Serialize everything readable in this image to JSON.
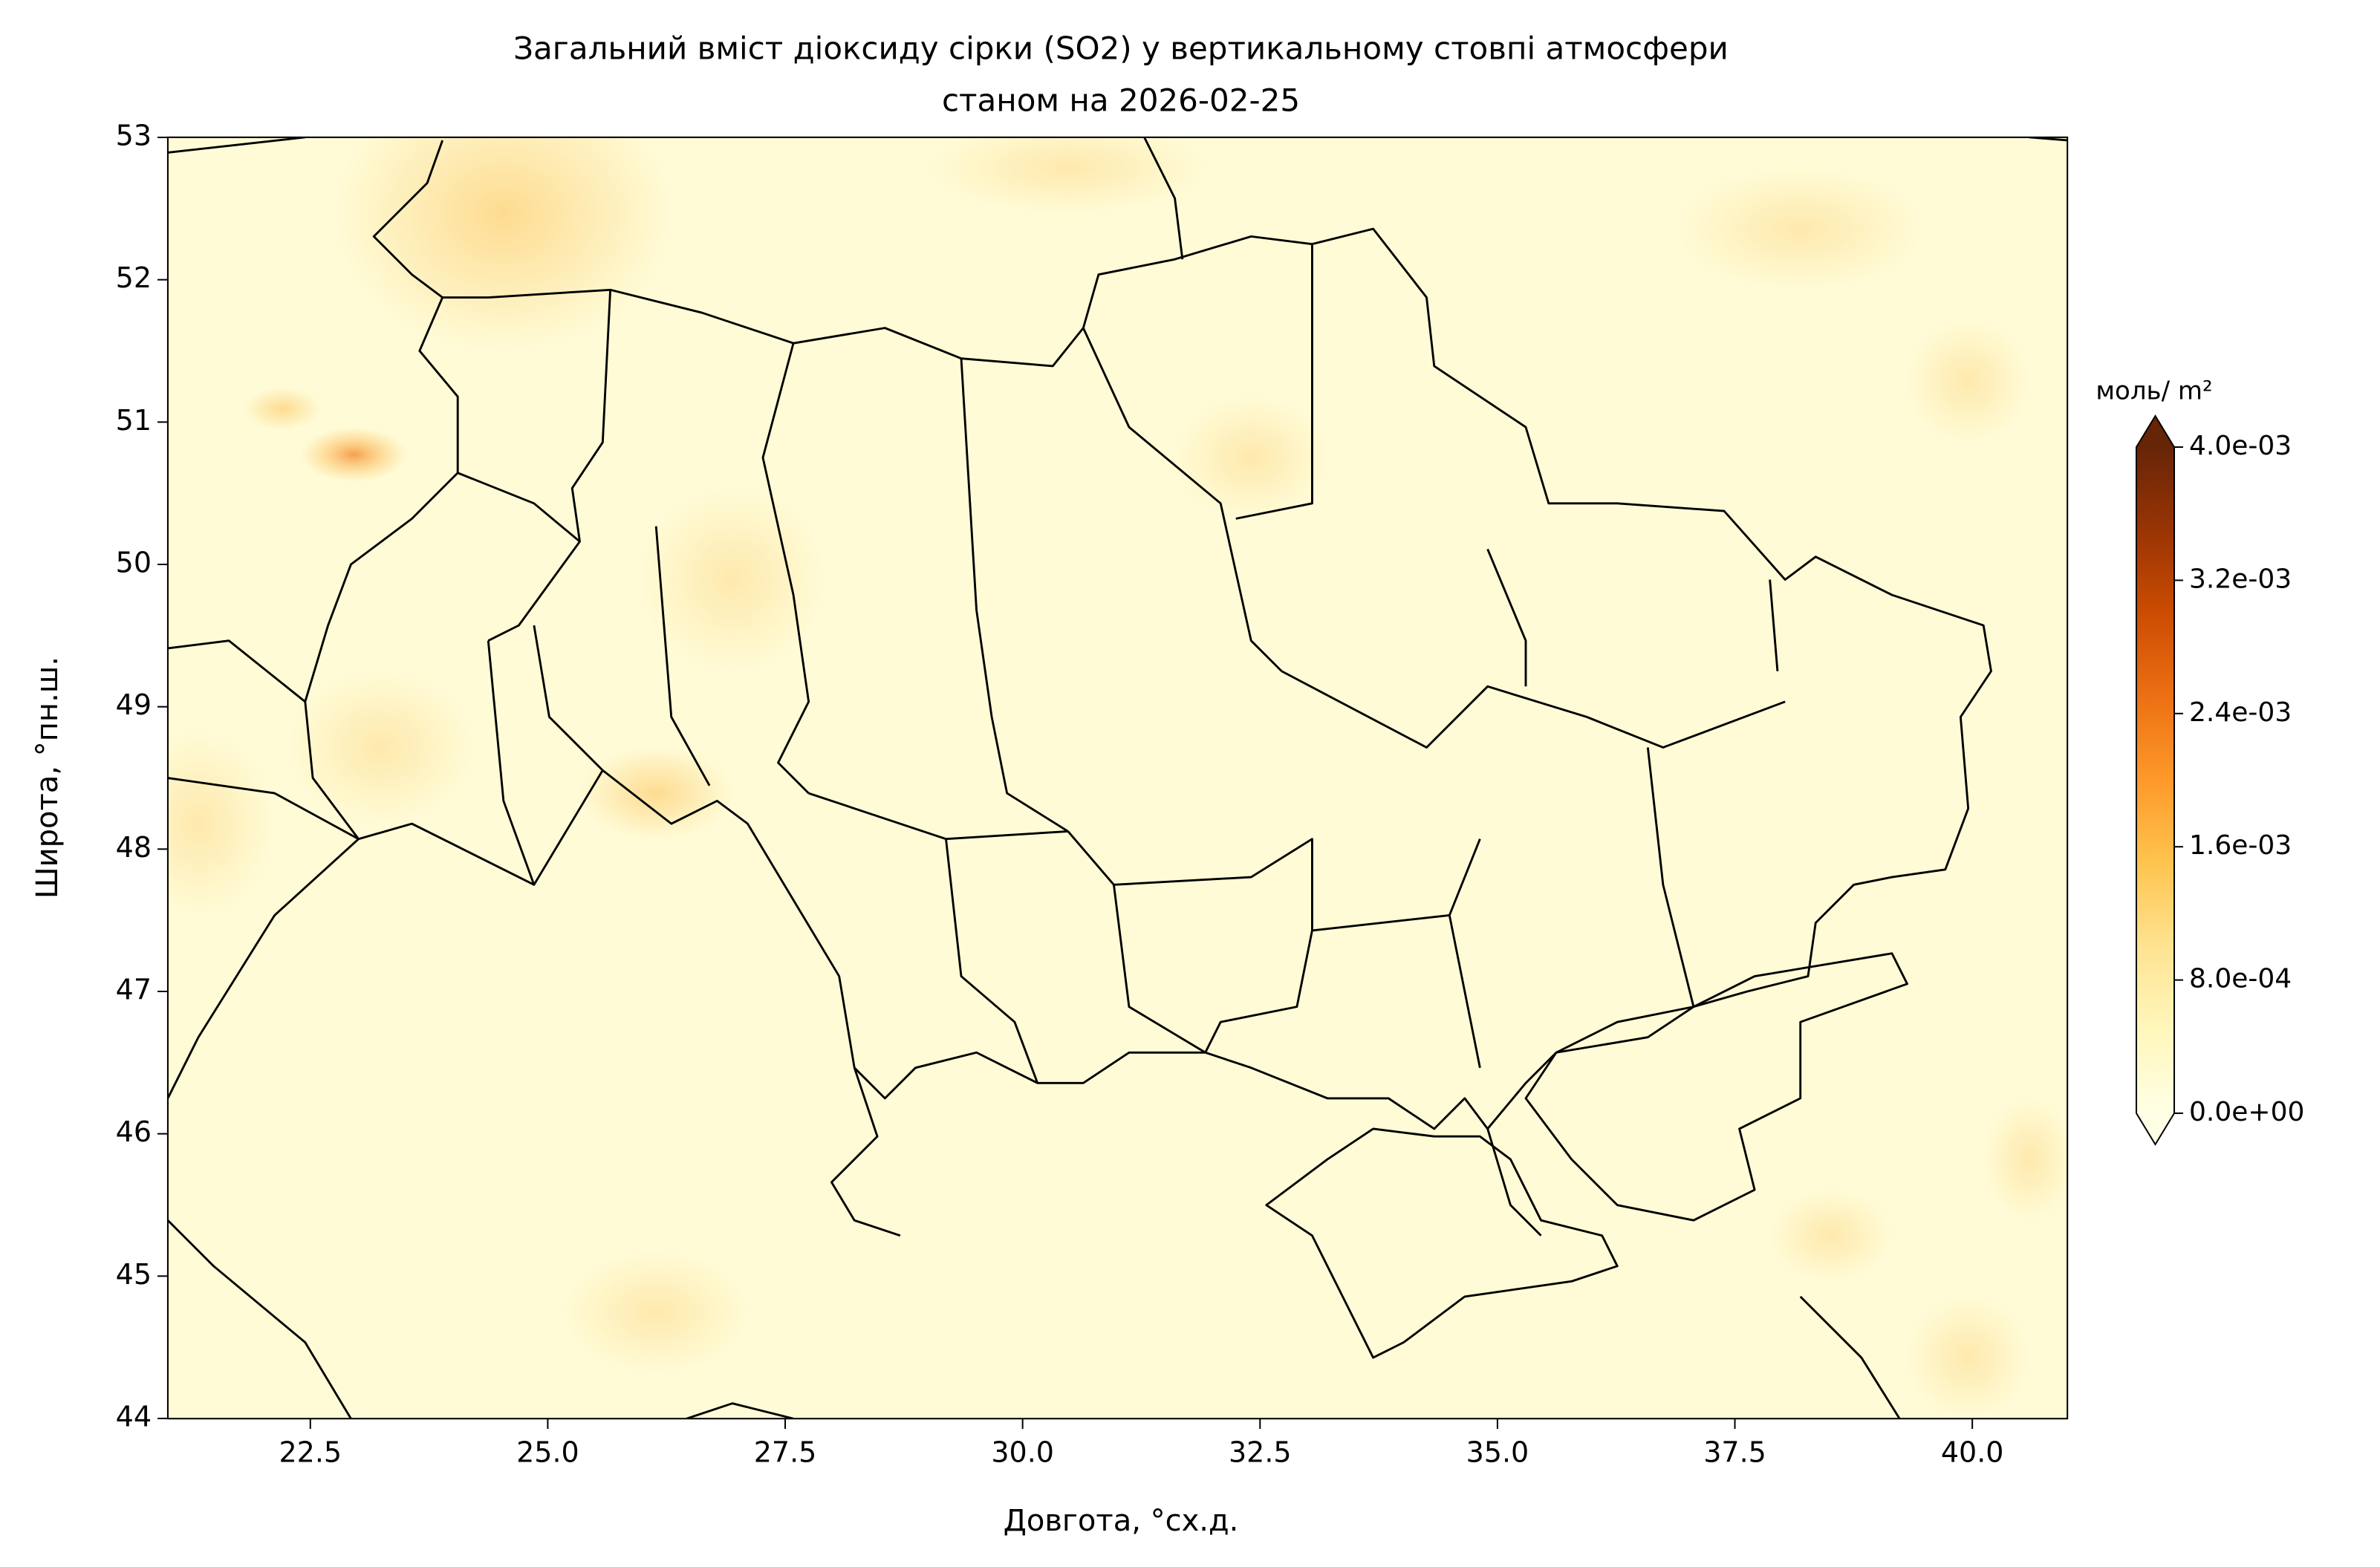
{
  "chart_data": {
    "type": "map",
    "title": [
      "Загальний вміст діоксиду сірки (SO2) у вертикальному стовпі атмосфери",
      "станом на 2026-02-25"
    ],
    "x_label": "Довгота, °сх.д.",
    "y_label": "Широта, °пн.ш.",
    "xlim": [
      21,
      41
    ],
    "ylim": [
      44,
      53
    ],
    "xticks": [
      22.5,
      {
        "value": 25,
        "label": "25.0"
      },
      27.5,
      {
        "value": 30,
        "label": "30.0"
      },
      32.5,
      {
        "value": 35,
        "label": "35.0"
      },
      37.5,
      {
        "value": 40,
        "label": "40.0"
      }
    ],
    "yticks": [
      44,
      45,
      46,
      47,
      48,
      49,
      50,
      51,
      52,
      53
    ],
    "colorbar": {
      "label": "моль/ m²",
      "lim": [
        0,
        0.004
      ],
      "ticks": [
        {
          "value": 0,
          "label": "0.0e+00"
        },
        {
          "value": 0.0008,
          "label": "8.0e-04"
        },
        {
          "value": 0.0016,
          "label": "1.6e-03"
        },
        {
          "value": 0.0024,
          "label": "2.4e-03"
        },
        {
          "value": 0.0032,
          "label": "3.2e-03"
        },
        {
          "value": 0.004,
          "label": "4.0e-03"
        }
      ],
      "colors": [
        "#ffffe5",
        "#fff7bc",
        "#fee391",
        "#fec44f",
        "#fe9929",
        "#ec7014",
        "#cc4c02",
        "#993404",
        "#662506"
      ],
      "extend": "both"
    }
  }
}
